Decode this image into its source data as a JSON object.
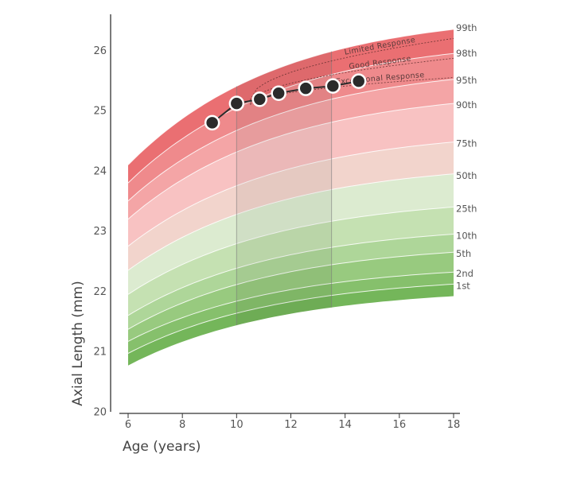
{
  "chart_data": {
    "type": "area",
    "title": "",
    "xlabel": "Age (years)",
    "ylabel": "Axial Length (mm)",
    "xlim": [
      6,
      18
    ],
    "ylim": [
      20,
      26.6
    ],
    "xticks": [
      6,
      8,
      10,
      12,
      14,
      16,
      18
    ],
    "yticks": [
      20,
      21,
      22,
      23,
      24,
      25,
      26
    ],
    "grid": false,
    "percentile_curves": [
      {
        "name": "1st",
        "y6": 20.97,
        "y18": 22.12
      },
      {
        "name": "2nd",
        "y6": 21.17,
        "y18": 22.32
      },
      {
        "name": "5th",
        "y6": 21.37,
        "y18": 22.65
      },
      {
        "name": "10th",
        "y6": 21.6,
        "y18": 22.95
      },
      {
        "name": "25th",
        "y6": 21.95,
        "y18": 23.4
      },
      {
        "name": "50th",
        "y6": 22.35,
        "y18": 23.95
      },
      {
        "name": "75th",
        "y6": 22.75,
        "y18": 24.48
      },
      {
        "name": "90th",
        "y6": 23.2,
        "y18": 25.12
      },
      {
        "name": "95th",
        "y6": 23.5,
        "y18": 25.52
      },
      {
        "name": "98th",
        "y6": 23.8,
        "y18": 25.95
      },
      {
        "name": "99th",
        "y6": 24.1,
        "y18": 26.35
      }
    ],
    "curve_shape": {
      "k": 0.18
    },
    "band_colors": [
      "#74b65a",
      "#86c06c",
      "#98ca7f",
      "#aed699",
      "#c5e1b2",
      "#dcebd0",
      "#f2d4cc",
      "#f8c2c2",
      "#f4a5a6",
      "#ef8a8c",
      "#ea6f72"
    ],
    "treatment_zone": {
      "x_start": 10,
      "x_end": 13.5,
      "line_color": "#7a7a7a"
    },
    "response_curves": [
      {
        "label": "Limited Response",
        "x": [
          10.5,
          18
        ],
        "y": [
          25.18,
          26.2
        ]
      },
      {
        "label": "Good Response",
        "x": [
          10.5,
          18
        ],
        "y": [
          25.12,
          25.87
        ]
      },
      {
        "label": "Exceptional Response",
        "x": [
          10.5,
          18
        ],
        "y": [
          25.1,
          25.55
        ]
      }
    ],
    "series": [
      {
        "name": "",
        "x": [
          9.1,
          10.0,
          10.85,
          11.55,
          12.55,
          13.55,
          14.5
        ],
        "y": [
          24.8,
          25.12,
          25.19,
          25.29,
          25.37,
          25.41,
          25.49
        ]
      }
    ],
    "point_colors": {
      "fill": "#2b2b2b",
      "stroke": "#ffffff"
    }
  }
}
